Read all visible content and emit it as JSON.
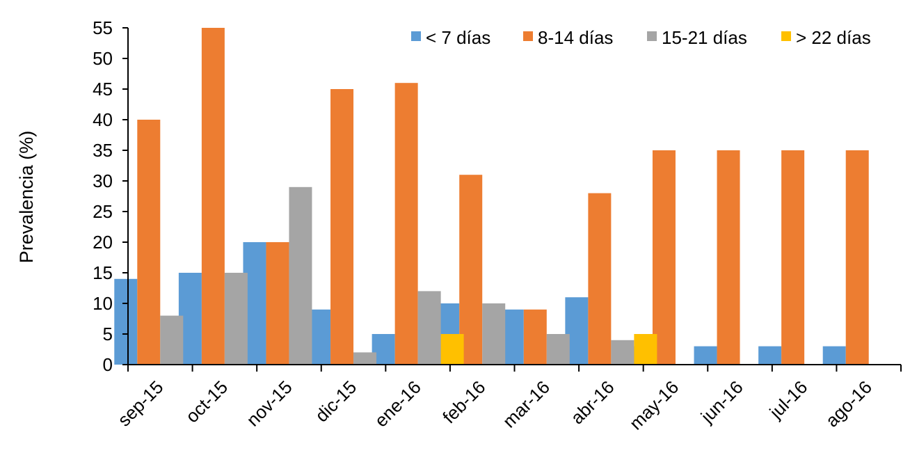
{
  "chart_data": {
    "type": "bar",
    "title": "",
    "xlabel": "",
    "ylabel": "Prevalencia (%)",
    "ylim": [
      0,
      55
    ],
    "yticks": [
      0,
      5,
      10,
      15,
      20,
      25,
      30,
      35,
      40,
      45,
      50,
      55
    ],
    "grid": false,
    "legend_position": "top-right",
    "categories": [
      "sep-15",
      "oct-15",
      "nov-15",
      "dic-15",
      "ene-16",
      "feb-16",
      "mar-16",
      "abr-16",
      "may-16",
      "jun-16",
      "jul-16",
      "ago-16"
    ],
    "series": [
      {
        "name": "< 7 días",
        "color": "#5B9BD5",
        "values": [
          14,
          15,
          20,
          9,
          5,
          10,
          9,
          11,
          3,
          3,
          3,
          3
        ]
      },
      {
        "name": "8-14 días",
        "color": "#ED7D31",
        "values": [
          40,
          55,
          20,
          45,
          46,
          31,
          9,
          28,
          35,
          35,
          35,
          35
        ]
      },
      {
        "name": "15-21 días",
        "color": "#A5A5A5",
        "values": [
          8,
          15,
          29,
          2,
          12,
          10,
          5,
          4,
          0,
          0,
          0,
          0
        ]
      },
      {
        "name": "> 22 días",
        "color": "#FFC000",
        "values": [
          0,
          0,
          0,
          0,
          5,
          0,
          0,
          5,
          0,
          0,
          0,
          0
        ]
      }
    ]
  }
}
